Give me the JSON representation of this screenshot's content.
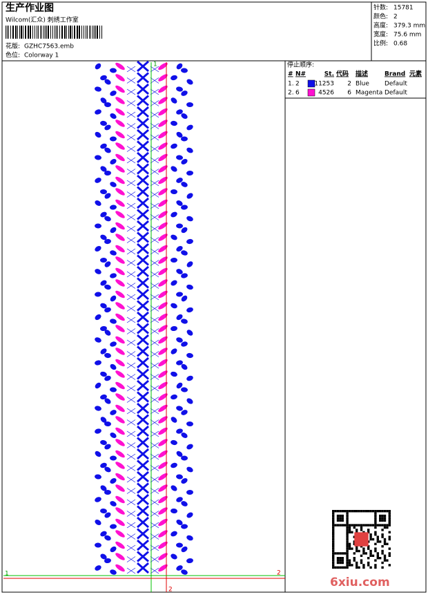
{
  "header": {
    "title": "生产作业图",
    "subtitle": "Wilcom(汇众) 刺绣工作室",
    "design_label": "花版:",
    "design_file": "GZHC7563.emb",
    "colorway_label": "色位:",
    "colorway": "Colorway 1"
  },
  "stats": [
    {
      "label": "针数:",
      "value": "15781"
    },
    {
      "label": "颜色:",
      "value": "2"
    },
    {
      "label": "高度:",
      "value": "379.3 mm"
    },
    {
      "label": "宽度:",
      "value": "75.6 mm"
    },
    {
      "label": "比例:",
      "value": "0.68"
    }
  ],
  "stop_sequence": {
    "title": "停止顺序:",
    "columns": [
      "#",
      "N#",
      "St.",
      "代码",
      "描述",
      "Brand",
      "元素"
    ],
    "rows": [
      {
        "index": "1.",
        "needle": "2",
        "color": "#1010e8",
        "stitches": "11253",
        "code": "2",
        "description": "Blue",
        "brand": "Default"
      },
      {
        "index": "2.",
        "needle": "6",
        "color": "#ff10d0",
        "stitches": "4526",
        "code": "6",
        "description": "Magenta",
        "brand": "Default"
      }
    ]
  },
  "markers": {
    "start": "1",
    "end": "2"
  },
  "watermark": "6xiu.com"
}
